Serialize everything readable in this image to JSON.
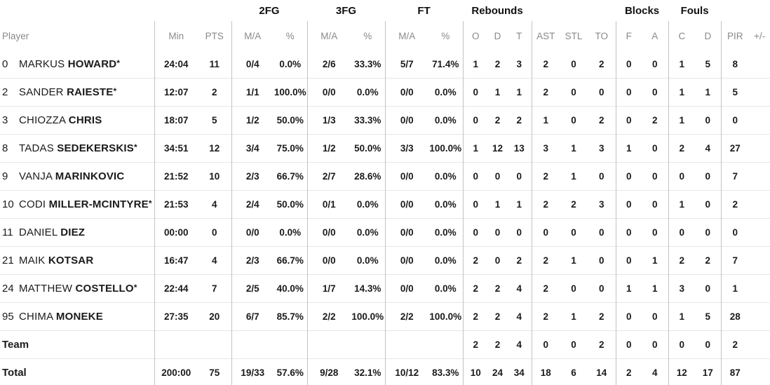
{
  "table": {
    "groups": {
      "fg2": "2FG",
      "fg3": "3FG",
      "ft": "FT",
      "rebounds": "Rebounds",
      "blocks": "Blocks",
      "fouls": "Fouls"
    },
    "starter_mark": "*",
    "columns": [
      {
        "key": "player",
        "label": "Player"
      },
      {
        "key": "min",
        "label": "Min"
      },
      {
        "key": "pts",
        "label": "PTS"
      },
      {
        "key": "fg2_ma",
        "label": "M/A"
      },
      {
        "key": "fg2_pct",
        "label": "%"
      },
      {
        "key": "fg3_ma",
        "label": "M/A"
      },
      {
        "key": "fg3_pct",
        "label": "%"
      },
      {
        "key": "ft_ma",
        "label": "M/A"
      },
      {
        "key": "ft_pct",
        "label": "%"
      },
      {
        "key": "reb_o",
        "label": "O"
      },
      {
        "key": "reb_d",
        "label": "D"
      },
      {
        "key": "reb_t",
        "label": "T"
      },
      {
        "key": "ast",
        "label": "AST"
      },
      {
        "key": "stl",
        "label": "STL"
      },
      {
        "key": "to",
        "label": "TO"
      },
      {
        "key": "blk_f",
        "label": "F"
      },
      {
        "key": "blk_a",
        "label": "A"
      },
      {
        "key": "foul_c",
        "label": "C"
      },
      {
        "key": "foul_d",
        "label": "D"
      },
      {
        "key": "pir",
        "label": "PIR"
      },
      {
        "key": "pm",
        "label": "+/-"
      }
    ],
    "rows": [
      {
        "number": "0",
        "first": "MARKUS",
        "last": "HOWARD",
        "starter": true,
        "stats": [
          "24:04",
          "11",
          "0/4",
          "0.0%",
          "2/6",
          "33.3%",
          "5/7",
          "71.4%",
          "1",
          "2",
          "3",
          "2",
          "0",
          "2",
          "0",
          "0",
          "1",
          "5",
          "8",
          ""
        ]
      },
      {
        "number": "2",
        "first": "SANDER",
        "last": "RAIESTE",
        "starter": true,
        "stats": [
          "12:07",
          "2",
          "1/1",
          "100.0%",
          "0/0",
          "0.0%",
          "0/0",
          "0.0%",
          "0",
          "1",
          "1",
          "2",
          "0",
          "0",
          "0",
          "0",
          "1",
          "1",
          "5",
          ""
        ]
      },
      {
        "number": "3",
        "first": "CHIOZZA",
        "last": "CHRIS",
        "starter": false,
        "stats": [
          "18:07",
          "5",
          "1/2",
          "50.0%",
          "1/3",
          "33.3%",
          "0/0",
          "0.0%",
          "0",
          "2",
          "2",
          "1",
          "0",
          "2",
          "0",
          "2",
          "1",
          "0",
          "0",
          ""
        ]
      },
      {
        "number": "8",
        "first": "TADAS",
        "last": "SEDEKERSKIS",
        "starter": true,
        "stats": [
          "34:51",
          "12",
          "3/4",
          "75.0%",
          "1/2",
          "50.0%",
          "3/3",
          "100.0%",
          "1",
          "12",
          "13",
          "3",
          "1",
          "3",
          "1",
          "0",
          "2",
          "4",
          "27",
          ""
        ]
      },
      {
        "number": "9",
        "first": "VANJA",
        "last": "MARINKOVIC",
        "starter": false,
        "stats": [
          "21:52",
          "10",
          "2/3",
          "66.7%",
          "2/7",
          "28.6%",
          "0/0",
          "0.0%",
          "0",
          "0",
          "0",
          "2",
          "1",
          "0",
          "0",
          "0",
          "0",
          "0",
          "7",
          ""
        ]
      },
      {
        "number": "10",
        "first": "CODI",
        "last": "MILLER-MCINTYRE",
        "starter": true,
        "stats": [
          "21:53",
          "4",
          "2/4",
          "50.0%",
          "0/1",
          "0.0%",
          "0/0",
          "0.0%",
          "0",
          "1",
          "1",
          "2",
          "2",
          "3",
          "0",
          "0",
          "1",
          "0",
          "2",
          ""
        ]
      },
      {
        "number": "11",
        "first": "DANIEL",
        "last": "DIEZ",
        "starter": false,
        "stats": [
          "00:00",
          "0",
          "0/0",
          "0.0%",
          "0/0",
          "0.0%",
          "0/0",
          "0.0%",
          "0",
          "0",
          "0",
          "0",
          "0",
          "0",
          "0",
          "0",
          "0",
          "0",
          "0",
          ""
        ]
      },
      {
        "number": "21",
        "first": "MAIK",
        "last": "KOTSAR",
        "starter": false,
        "stats": [
          "16:47",
          "4",
          "2/3",
          "66.7%",
          "0/0",
          "0.0%",
          "0/0",
          "0.0%",
          "2",
          "0",
          "2",
          "2",
          "1",
          "0",
          "0",
          "1",
          "2",
          "2",
          "7",
          ""
        ]
      },
      {
        "number": "24",
        "first": "MATTHEW",
        "last": "COSTELLO",
        "starter": true,
        "stats": [
          "22:44",
          "7",
          "2/5",
          "40.0%",
          "1/7",
          "14.3%",
          "0/0",
          "0.0%",
          "2",
          "2",
          "4",
          "2",
          "0",
          "0",
          "1",
          "1",
          "3",
          "0",
          "1",
          ""
        ]
      },
      {
        "number": "95",
        "first": "CHIMA",
        "last": "MONEKE",
        "starter": false,
        "stats": [
          "27:35",
          "20",
          "6/7",
          "85.7%",
          "2/2",
          "100.0%",
          "2/2",
          "100.0%",
          "2",
          "2",
          "4",
          "2",
          "1",
          "2",
          "0",
          "0",
          "1",
          "5",
          "28",
          ""
        ]
      }
    ],
    "summary_rows": [
      {
        "label": "Team",
        "stats": [
          "",
          "",
          "",
          "",
          "",
          "",
          "",
          "",
          "2",
          "2",
          "4",
          "0",
          "0",
          "2",
          "0",
          "0",
          "0",
          "0",
          "2",
          ""
        ]
      },
      {
        "label": "Total",
        "stats": [
          "200:00",
          "75",
          "19/33",
          "57.6%",
          "9/28",
          "32.1%",
          "10/12",
          "83.3%",
          "10",
          "24",
          "34",
          "18",
          "6",
          "14",
          "2",
          "4",
          "12",
          "17",
          "87",
          ""
        ]
      }
    ]
  }
}
